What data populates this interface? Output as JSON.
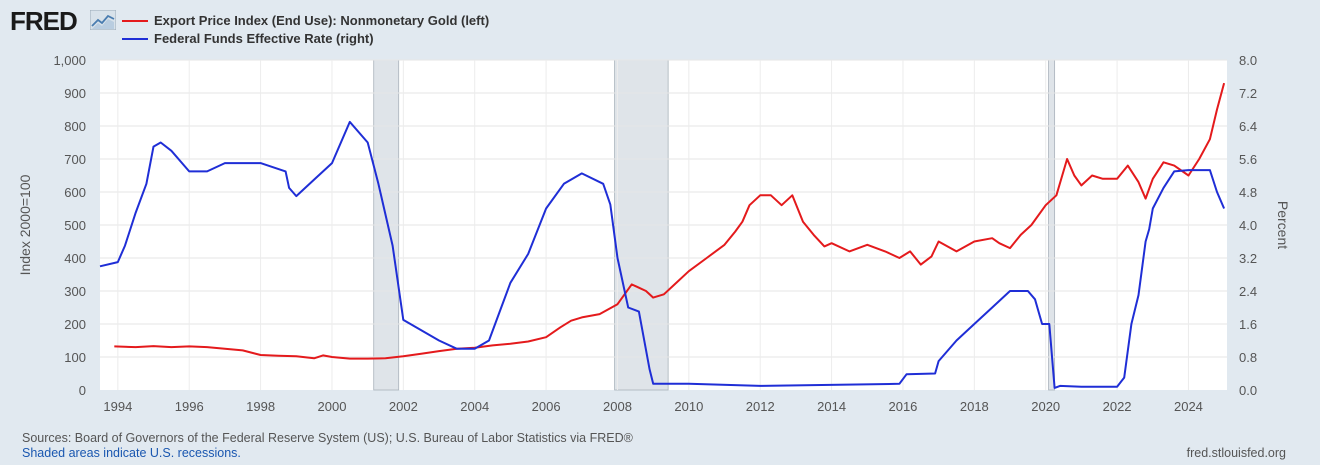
{
  "brand": {
    "logo_text": "FRED"
  },
  "legend": [
    {
      "label": "Export Price Index (End Use): Nonmonetary Gold (left)",
      "color": "#e41a1c"
    },
    {
      "label": "Federal Funds Effective Rate (right)",
      "color": "#1f2ed6"
    }
  ],
  "footer": {
    "sources": "Sources: Board of Governors of the Federal Reserve System (US); U.S. Bureau of Labor Statistics via FRED®",
    "shaded_note": "Shaded areas indicate U.S. recessions.",
    "url": "fred.stlouisfed.org"
  },
  "chart_data": {
    "type": "line",
    "x_range": [
      1993.5,
      2025.08
    ],
    "x_ticks": [
      "1994",
      "1996",
      "1998",
      "2000",
      "2002",
      "2004",
      "2006",
      "2008",
      "2010",
      "2012",
      "2014",
      "2016",
      "2018",
      "2020",
      "2022",
      "2024"
    ],
    "left_axis": {
      "label": "Index 2000=100",
      "range": [
        0,
        1000
      ],
      "tick_labels": [
        "0",
        "100",
        "200",
        "300",
        "400",
        "500",
        "600",
        "700",
        "800",
        "900",
        "1,000"
      ]
    },
    "right_axis": {
      "label": "Percent",
      "range": [
        0,
        8
      ],
      "tick_labels": [
        "0.0",
        "0.8",
        "1.6",
        "2.4",
        "3.2",
        "4.0",
        "4.8",
        "5.6",
        "6.4",
        "7.2",
        "8.0"
      ]
    },
    "recessions": [
      [
        2001.17,
        2001.87
      ],
      [
        2007.92,
        2009.42
      ],
      [
        2020.08,
        2020.25
      ]
    ],
    "series": [
      {
        "name": "Export Price Index (End Use): Nonmonetary Gold",
        "axis": "left",
        "color": "#e41a1c",
        "x": [
          1993.9,
          1994.5,
          1995.0,
          1995.5,
          1996.0,
          1996.5,
          1997.0,
          1997.5,
          1998.0,
          1998.5,
          1999.0,
          1999.5,
          1999.75,
          2000.0,
          2000.5,
          2001.0,
          2001.5,
          2002.0,
          2002.5,
          2003.0,
          2003.5,
          2004.0,
          2004.5,
          2005.0,
          2005.5,
          2006.0,
          2006.4,
          2006.7,
          2007.0,
          2007.5,
          2008.0,
          2008.2,
          2008.4,
          2008.6,
          2008.8,
          2009.0,
          2009.3,
          2009.6,
          2010.0,
          2010.5,
          2011.0,
          2011.3,
          2011.5,
          2011.7,
          2012.0,
          2012.3,
          2012.6,
          2012.9,
          2013.2,
          2013.5,
          2013.8,
          2014.0,
          2014.5,
          2015.0,
          2015.5,
          2015.9,
          2016.2,
          2016.5,
          2016.8,
          2017.0,
          2017.5,
          2018.0,
          2018.5,
          2018.7,
          2019.0,
          2019.3,
          2019.6,
          2020.0,
          2020.3,
          2020.6,
          2020.8,
          2021.0,
          2021.3,
          2021.6,
          2022.0,
          2022.3,
          2022.6,
          2022.8,
          2023.0,
          2023.3,
          2023.6,
          2024.0,
          2024.3,
          2024.6,
          2024.8,
          2025.0
        ],
        "values": [
          132,
          130,
          133,
          130,
          132,
          130,
          125,
          120,
          106,
          104,
          102,
          96,
          105,
          100,
          95,
          95,
          96,
          102,
          110,
          118,
          125,
          128,
          135,
          140,
          147,
          160,
          190,
          210,
          220,
          230,
          260,
          290,
          320,
          310,
          300,
          280,
          290,
          320,
          360,
          400,
          440,
          480,
          510,
          560,
          590,
          590,
          560,
          590,
          510,
          470,
          435,
          445,
          420,
          440,
          420,
          400,
          420,
          380,
          405,
          450,
          420,
          450,
          460,
          445,
          430,
          470,
          500,
          560,
          590,
          700,
          650,
          620,
          650,
          640,
          640,
          680,
          630,
          580,
          640,
          690,
          680,
          650,
          700,
          760,
          850,
          930
        ]
      },
      {
        "name": "Federal Funds Effective Rate",
        "axis": "right",
        "color": "#1f2ed6",
        "x": [
          1993.5,
          1994.0,
          1994.2,
          1994.5,
          1994.8,
          1995.0,
          1995.2,
          1995.5,
          1996.0,
          1996.5,
          1997.0,
          1998.0,
          1998.7,
          1998.8,
          1999.0,
          1999.5,
          2000.0,
          2000.5,
          2001.0,
          2001.3,
          2001.7,
          2002.0,
          2003.0,
          2003.5,
          2004.0,
          2004.4,
          2004.7,
          2005.0,
          2005.5,
          2006.0,
          2006.5,
          2007.0,
          2007.6,
          2007.8,
          2008.0,
          2008.3,
          2008.6,
          2008.9,
          2009.0,
          2010.0,
          2012.0,
          2015.9,
          2016.1,
          2016.9,
          2017.0,
          2017.5,
          2018.0,
          2018.5,
          2019.0,
          2019.5,
          2019.7,
          2019.9,
          2020.1,
          2020.25,
          2020.4,
          2021.0,
          2022.0,
          2022.2,
          2022.4,
          2022.6,
          2022.8,
          2022.9,
          2023.0,
          2023.3,
          2023.6,
          2024.0,
          2024.6,
          2024.8,
          2025.0
        ],
        "values": [
          3.0,
          3.1,
          3.5,
          4.3,
          5.0,
          5.9,
          6.0,
          5.8,
          5.3,
          5.3,
          5.5,
          5.5,
          5.3,
          4.9,
          4.7,
          5.1,
          5.5,
          6.5,
          6.0,
          5.0,
          3.5,
          1.7,
          1.2,
          1.0,
          1.0,
          1.2,
          1.9,
          2.6,
          3.3,
          4.4,
          5.0,
          5.25,
          5.0,
          4.5,
          3.2,
          2.0,
          1.9,
          0.5,
          0.15,
          0.15,
          0.1,
          0.15,
          0.38,
          0.4,
          0.7,
          1.2,
          1.6,
          2.0,
          2.4,
          2.4,
          2.2,
          1.6,
          1.6,
          0.05,
          0.1,
          0.08,
          0.08,
          0.3,
          1.6,
          2.3,
          3.6,
          3.9,
          4.4,
          4.9,
          5.3,
          5.33,
          5.33,
          4.8,
          4.4
        ]
      }
    ]
  }
}
